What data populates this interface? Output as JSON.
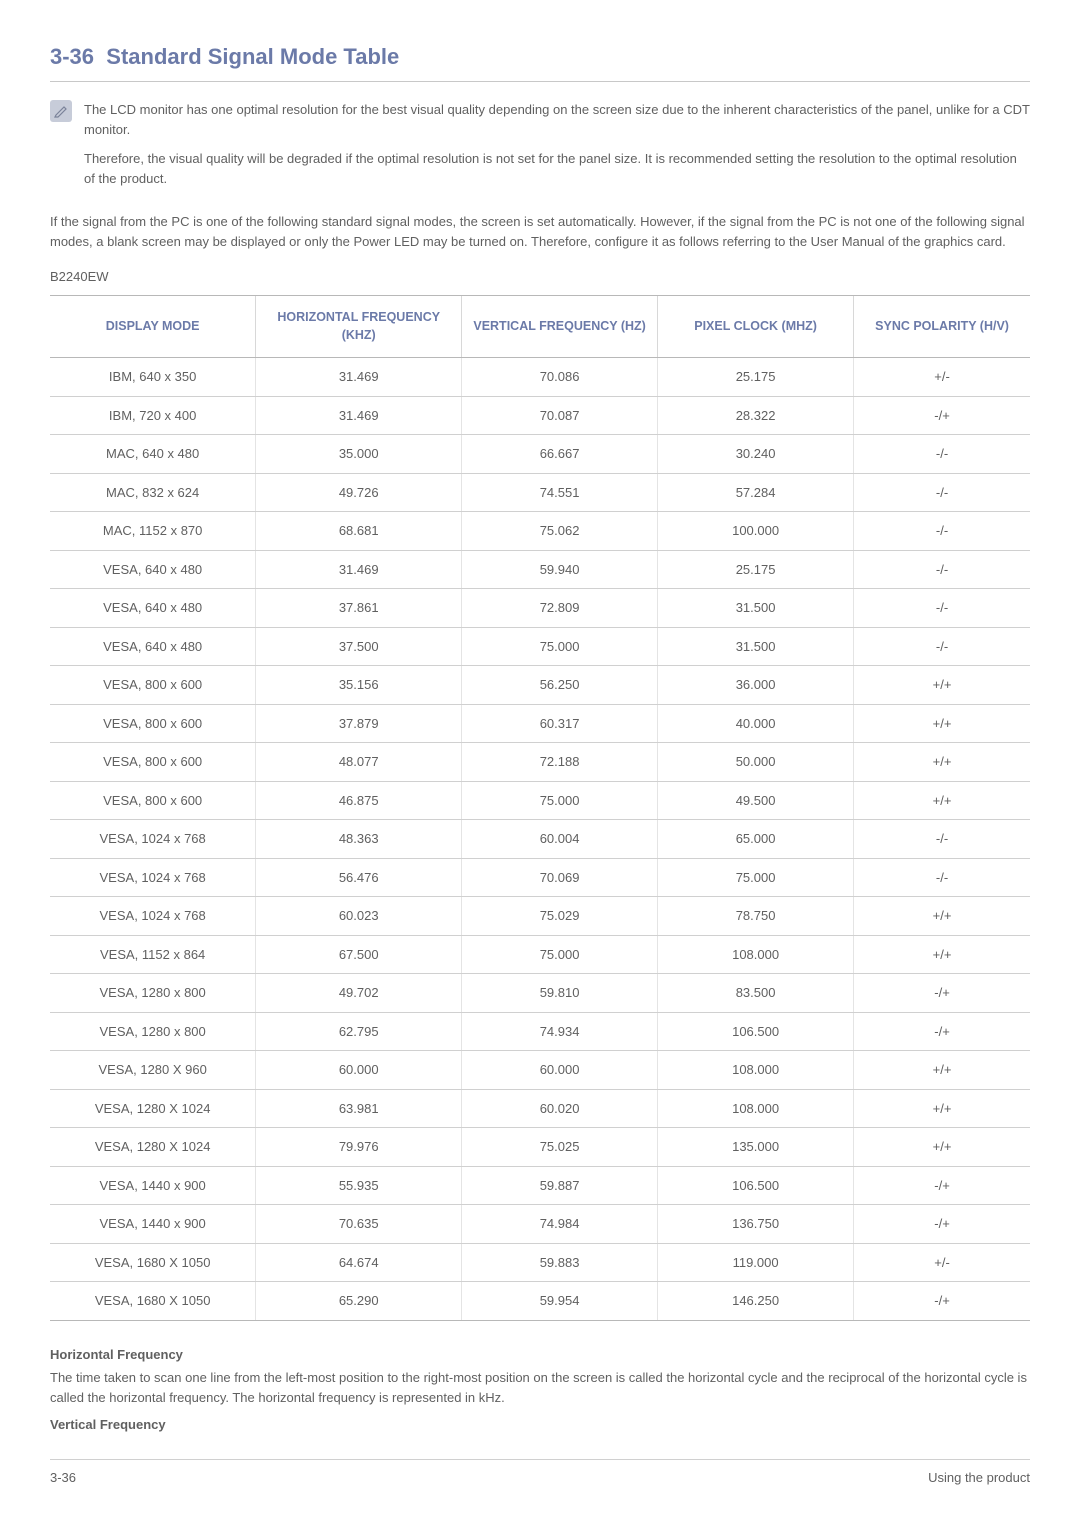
{
  "section": {
    "number": "3-36",
    "title": "Standard Signal Mode Table"
  },
  "note": {
    "p1": "The LCD monitor has one optimal resolution for the best visual quality depending on the screen size due to the inherent characteristics of the panel, unlike for a CDT monitor.",
    "p2": "Therefore, the visual quality will be degraded if the optimal resolution is not set for the panel size. It is recommended setting the resolution to the optimal resolution of the product."
  },
  "intro": "If the signal from the PC is one of the following standard signal modes, the screen is set automatically. However, if the signal from the PC is not one of the following signal modes, a blank screen may be displayed or only the Power LED may be turned on. Therefore, configure it as follows referring to the User Manual of the graphics card.",
  "model": "B2240EW",
  "table": {
    "columns": [
      "DISPLAY MODE",
      "HORIZONTAL FREQUENCY (KHZ)",
      "VERTICAL FREQUENCY (HZ)",
      "PIXEL CLOCK (MHZ)",
      "SYNC POLARITY (H/V)"
    ],
    "col_widths": [
      "21%",
      "21%",
      "20%",
      "20%",
      "18%"
    ],
    "rows": [
      [
        "IBM, 640 x 350",
        "31.469",
        "70.086",
        "25.175",
        "+/-"
      ],
      [
        "IBM, 720 x 400",
        "31.469",
        "70.087",
        "28.322",
        "-/+"
      ],
      [
        "MAC, 640 x 480",
        "35.000",
        "66.667",
        "30.240",
        "-/-"
      ],
      [
        "MAC, 832 x 624",
        "49.726",
        "74.551",
        "57.284",
        "-/-"
      ],
      [
        "MAC, 1152 x 870",
        "68.681",
        "75.062",
        "100.000",
        "-/-"
      ],
      [
        "VESA, 640 x 480",
        "31.469",
        "59.940",
        "25.175",
        "-/-"
      ],
      [
        "VESA, 640 x 480",
        "37.861",
        "72.809",
        "31.500",
        "-/-"
      ],
      [
        "VESA, 640 x 480",
        "37.500",
        "75.000",
        "31.500",
        "-/-"
      ],
      [
        "VESA, 800 x 600",
        "35.156",
        "56.250",
        "36.000",
        "+/+"
      ],
      [
        "VESA, 800 x 600",
        "37.879",
        "60.317",
        "40.000",
        "+/+"
      ],
      [
        "VESA, 800 x 600",
        "48.077",
        "72.188",
        "50.000",
        "+/+"
      ],
      [
        "VESA, 800 x 600",
        "46.875",
        "75.000",
        "49.500",
        "+/+"
      ],
      [
        "VESA, 1024 x 768",
        "48.363",
        "60.004",
        "65.000",
        "-/-"
      ],
      [
        "VESA, 1024 x 768",
        "56.476",
        "70.069",
        "75.000",
        "-/-"
      ],
      [
        "VESA, 1024 x 768",
        "60.023",
        "75.029",
        "78.750",
        "+/+"
      ],
      [
        "VESA, 1152 x 864",
        "67.500",
        "75.000",
        "108.000",
        "+/+"
      ],
      [
        "VESA, 1280 x 800",
        "49.702",
        "59.810",
        "83.500",
        "-/+"
      ],
      [
        "VESA, 1280 x 800",
        "62.795",
        "74.934",
        "106.500",
        "-/+"
      ],
      [
        "VESA, 1280 X 960",
        "60.000",
        "60.000",
        "108.000",
        "+/+"
      ],
      [
        "VESA, 1280 X 1024",
        "63.981",
        "60.020",
        "108.000",
        "+/+"
      ],
      [
        "VESA, 1280 X 1024",
        "79.976",
        "75.025",
        "135.000",
        "+/+"
      ],
      [
        "VESA, 1440 x 900",
        "55.935",
        "59.887",
        "106.500",
        "-/+"
      ],
      [
        "VESA, 1440 x 900",
        "70.635",
        "74.984",
        "136.750",
        "-/+"
      ],
      [
        "VESA, 1680 X 1050",
        "64.674",
        "59.883",
        "119.000",
        "+/-"
      ],
      [
        "VESA, 1680 X 1050",
        "65.290",
        "59.954",
        "146.250",
        "-/+"
      ]
    ]
  },
  "defs": {
    "h_heading": "Horizontal Frequency",
    "h_text": "The time taken to scan one line from the left-most position to the right-most position on the screen is called the horizontal cycle and the reciprocal of the horizontal cycle is called the horizontal frequency. The horizontal frequency is represented in kHz.",
    "v_heading": "Vertical Frequency"
  },
  "footer": {
    "left": "3-36",
    "right": "Using the product"
  },
  "colors": {
    "heading": "#6b7aa8",
    "body_text": "#606060",
    "rule": "#c8c8c8",
    "table_border_strong": "#b8b8b8",
    "table_border_soft": "#d0d0d0",
    "note_icon_bg": "#c7ccd9"
  }
}
